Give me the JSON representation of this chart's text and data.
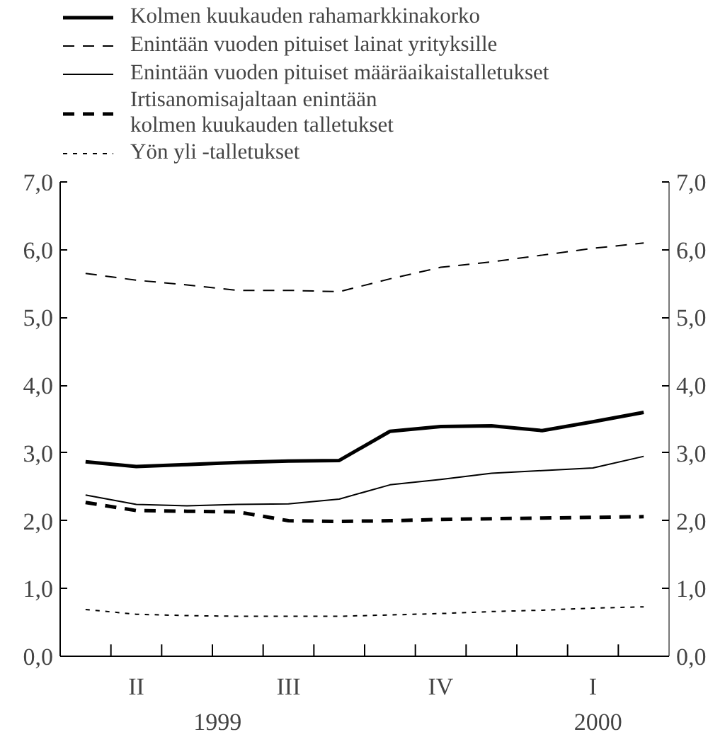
{
  "chart_data": {
    "type": "line",
    "categories": [
      null,
      "II",
      null,
      null,
      "III",
      null,
      null,
      "IV",
      null,
      null,
      "I",
      null
    ],
    "series": [
      {
        "name": "Kolmen kuukauden rahamarkkinakorko",
        "color": "#000000",
        "line_style": "solid",
        "values": [
          2.87,
          2.8,
          2.83,
          2.86,
          2.88,
          2.89,
          3.32,
          3.39,
          3.4,
          3.33,
          3.46,
          3.6
        ]
      },
      {
        "name": "Enintään vuoden pituiset lainat yrityksille",
        "color": "#000000",
        "line_style": "dashed",
        "values": [
          5.65,
          5.55,
          5.48,
          5.4,
          5.4,
          5.38,
          5.57,
          5.74,
          5.82,
          5.92,
          6.02,
          6.1
        ]
      },
      {
        "name": "Enintään vuoden pituiset määräaikaistalletukset",
        "color": "#000000",
        "line_style": "solid",
        "values": [
          2.38,
          2.24,
          2.22,
          2.24,
          2.25,
          2.32,
          2.53,
          2.61,
          2.7,
          2.74,
          2.78,
          2.95
        ]
      },
      {
        "name": "Irtisanomisajaltaan enintään\nkolmen kuukauden talletukset",
        "color": "#000000",
        "line_style": "dashed",
        "values": [
          2.27,
          2.15,
          2.14,
          2.13,
          2.0,
          1.99,
          2.0,
          2.02,
          2.03,
          2.04,
          2.05,
          2.06
        ]
      },
      {
        "name": "Yön yli -talletukset",
        "color": "#000000",
        "line_style": "dotted",
        "values": [
          0.69,
          0.62,
          0.6,
          0.59,
          0.59,
          0.59,
          0.61,
          0.63,
          0.66,
          0.68,
          0.71,
          0.73
        ]
      }
    ],
    "ylim": [
      0,
      7
    ],
    "yticks": [
      {
        "value": 0,
        "label": "0,0"
      },
      {
        "value": 1,
        "label": "1,0"
      },
      {
        "value": 2,
        "label": "2,0"
      },
      {
        "value": 3,
        "label": "3,0"
      },
      {
        "value": 4,
        "label": "4,0"
      },
      {
        "value": 5,
        "label": "5,0"
      },
      {
        "value": 6,
        "label": "6,0"
      },
      {
        "value": 7,
        "label": "7,0"
      }
    ],
    "y2lim": [
      0,
      7
    ],
    "y2ticks": [
      {
        "value": 0,
        "label": "0,0"
      },
      {
        "value": 1,
        "label": "1,0"
      },
      {
        "value": 2,
        "label": "2,0"
      },
      {
        "value": 3,
        "label": "3,0"
      },
      {
        "value": 4,
        "label": "4,0"
      },
      {
        "value": 5,
        "label": "5,0"
      },
      {
        "value": 6,
        "label": "6,0"
      },
      {
        "value": 7,
        "label": "7,0"
      }
    ],
    "annotations": [
      "1999",
      "2000"
    ],
    "legend": "top",
    "marker": "none"
  }
}
